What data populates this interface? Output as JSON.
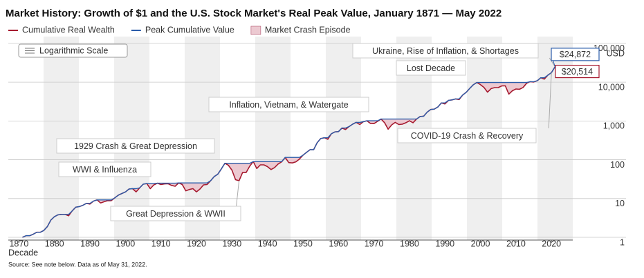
{
  "chart_data": {
    "type": "line",
    "title": "Market History: Growth of $1 and the U.S. Stock Market's Real Peak Value, January 1871 — May 2022",
    "x_label": "Decade",
    "y_unit": "USD",
    "scale_note": "Logarithmic Scale",
    "source": "Source: See note below. Data as of May 31, 2022.",
    "crash_label": "Market Crash Episode",
    "crash_color": "#ecc9d1",
    "log_scale": true,
    "grid": true,
    "xlim": [
      1867,
      2026
    ],
    "xticks": [
      1870,
      1880,
      1890,
      1900,
      1910,
      1920,
      1930,
      1940,
      1950,
      1960,
      1970,
      1980,
      1990,
      2000,
      2010,
      2020
    ],
    "ylim": [
      0.85,
      150000
    ],
    "yticks": [
      1,
      10,
      100,
      {
        "value": 1000,
        "label": "1,000"
      },
      {
        "value": 10000,
        "label": "10,000"
      },
      {
        "value": 100000,
        "label": "100,000"
      }
    ],
    "annotations": [
      "Ukraine, Rise of Inflation, & Shortages",
      "Lost Decade",
      "Inflation, Vietnam, & Watergate",
      "COVID-19 Crash & Recovery",
      "1929 Crash & Great Depression",
      "WWI & Influenza",
      "Great Depression & WWII"
    ],
    "x": [
      1871,
      1872,
      1873,
      1874,
      1875,
      1876,
      1877,
      1878,
      1879,
      1880,
      1881,
      1882,
      1883,
      1884,
      1885,
      1886,
      1887,
      1888,
      1889,
      1890,
      1891,
      1892,
      1893,
      1894,
      1895,
      1896,
      1897,
      1898,
      1899,
      1900,
      1901,
      1902,
      1903,
      1904,
      1905,
      1906,
      1907,
      1908,
      1909,
      1910,
      1911,
      1912,
      1913,
      1914,
      1915,
      1916,
      1917,
      1918,
      1919,
      1920,
      1921,
      1922,
      1923,
      1924,
      1925,
      1926,
      1927,
      1928,
      1929,
      1930,
      1931,
      1932,
      1933,
      1934,
      1935,
      1936,
      1937,
      1938,
      1939,
      1940,
      1941,
      1942,
      1943,
      1944,
      1945,
      1946,
      1947,
      1948,
      1949,
      1950,
      1951,
      1952,
      1953,
      1954,
      1955,
      1956,
      1957,
      1958,
      1959,
      1960,
      1961,
      1962,
      1963,
      1964,
      1965,
      1966,
      1967,
      1968,
      1969,
      1970,
      1971,
      1972,
      1973,
      1974,
      1975,
      1976,
      1977,
      1978,
      1979,
      1980,
      1981,
      1982,
      1983,
      1984,
      1985,
      1986,
      1987,
      1988,
      1989,
      1990,
      1991,
      1992,
      1993,
      1994,
      1995,
      1996,
      1997,
      1998,
      1999,
      2000,
      2001,
      2002,
      2003,
      2004,
      2005,
      2006,
      2007,
      2008,
      2009,
      2010,
      2011,
      2012,
      2013,
      2014,
      2015,
      2016,
      2017,
      2018,
      2019,
      2020,
      2021,
      2022
    ],
    "series": [
      {
        "name": "Cumulative Real Wealth",
        "color": "#a6192e",
        "values": [
          1.0,
          1.1,
          1.1,
          1.2,
          1.35,
          1.35,
          1.5,
          1.9,
          2.8,
          3.4,
          3.8,
          3.9,
          3.9,
          3.6,
          4.8,
          6.0,
          6.2,
          6.7,
          7.5,
          7.2,
          8.6,
          9.2,
          7.7,
          8.3,
          8.8,
          8.8,
          10.4,
          12.2,
          13.5,
          14.8,
          17.6,
          18.0,
          14.9,
          18.9,
          23.4,
          24.3,
          18.0,
          22.5,
          24.8,
          23.0,
          23.8,
          24.1,
          21.8,
          20.7,
          25.2,
          23.0,
          15.8,
          17.1,
          18.0,
          14.9,
          17.6,
          22.5,
          23.0,
          28.8,
          36.9,
          42.3,
          57.6,
          81,
          72,
          54,
          30.6,
          28.8,
          46.8,
          46.8,
          68.4,
          90,
          59.4,
          73.8,
          73.8,
          66.6,
          55.8,
          63,
          77.4,
          88.2,
          115,
          84.6,
          82.8,
          88.2,
          104,
          131,
          155,
          182,
          182,
          275,
          351,
          369,
          337,
          468,
          522,
          531,
          657,
          603,
          720,
          828,
          918,
          810,
          954,
          1010,
          864,
          855,
          972,
          1120,
          900,
          612,
          792,
          918,
          810,
          828,
          900,
          1010,
          900,
          1120,
          1300,
          1330,
          1690,
          1980,
          2020,
          2290,
          2920,
          2740,
          3400,
          3500,
          3700,
          3560,
          4680,
          5480,
          6960,
          8610,
          9800,
          8630,
          7290,
          5520,
          6830,
          7240,
          7230,
          8040,
          8050,
          4920,
          6020,
          6670,
          6560,
          7300,
          9390,
          10300,
          10100,
          10900,
          13000,
          12000,
          15200,
          17600,
          24872,
          20514
        ],
        "value_labels": [
          null,
          null,
          null,
          null,
          null,
          null,
          null,
          null,
          null,
          null,
          null,
          null,
          null,
          null,
          null,
          null,
          null,
          null,
          null,
          null,
          null,
          null,
          null,
          null,
          null,
          null,
          null,
          null,
          null,
          null,
          null,
          null,
          null,
          null,
          null,
          null,
          null,
          null,
          null,
          null,
          null,
          null,
          null,
          null,
          null,
          null,
          null,
          null,
          null,
          null,
          null,
          null,
          null,
          null,
          null,
          null,
          null,
          null,
          null,
          null,
          null,
          null,
          null,
          null,
          null,
          null,
          null,
          null,
          null,
          null,
          null,
          null,
          null,
          null,
          null,
          null,
          null,
          null,
          null,
          null,
          null,
          null,
          null,
          null,
          null,
          null,
          null,
          null,
          null,
          null,
          null,
          null,
          null,
          null,
          null,
          null,
          null,
          null,
          null,
          null,
          null,
          null,
          null,
          null,
          null,
          null,
          null,
          null,
          null,
          null,
          null,
          null,
          null,
          null,
          null,
          null,
          null,
          null,
          null,
          null,
          null,
          null,
          null,
          null,
          null,
          null,
          null,
          null,
          null,
          null,
          null,
          null,
          null,
          null,
          null,
          null,
          null,
          null,
          null,
          null,
          null,
          null,
          null,
          null,
          null,
          null,
          null,
          null,
          null,
          null,
          null,
          "$20,514"
        ]
      },
      {
        "name": "Peak Cumulative Value",
        "color": "#2a5caa",
        "values": [
          1.0,
          1.1,
          1.1,
          1.2,
          1.35,
          1.35,
          1.5,
          1.9,
          2.8,
          3.4,
          3.8,
          3.9,
          3.9,
          3.9,
          4.8,
          6.0,
          6.2,
          6.7,
          7.5,
          7.5,
          8.6,
          9.2,
          9.2,
          9.2,
          9.2,
          9.2,
          10.4,
          12.2,
          13.5,
          14.8,
          17.6,
          18.0,
          18.0,
          18.9,
          23.4,
          24.3,
          24.3,
          24.3,
          24.8,
          24.8,
          24.8,
          24.8,
          24.8,
          24.8,
          25.2,
          25.2,
          25.2,
          25.2,
          25.2,
          25.2,
          25.2,
          25.2,
          25.2,
          28.8,
          36.9,
          42.3,
          57.6,
          81,
          81,
          81,
          81,
          81,
          81,
          81,
          81,
          90,
          90,
          90,
          90,
          90,
          90,
          90,
          90,
          90,
          115,
          115,
          115,
          115,
          115,
          131,
          155,
          182,
          182,
          275,
          351,
          369,
          369,
          468,
          522,
          531,
          657,
          657,
          720,
          828,
          918,
          918,
          954,
          1010,
          1010,
          1010,
          1010,
          1120,
          1120,
          1120,
          1120,
          1120,
          1120,
          1120,
          1120,
          1120,
          1120,
          1120,
          1300,
          1330,
          1690,
          1980,
          2020,
          2290,
          2920,
          2920,
          3400,
          3500,
          3700,
          3700,
          4680,
          5480,
          6960,
          8610,
          9800,
          9800,
          9800,
          9800,
          9800,
          9800,
          9800,
          9800,
          9800,
          9800,
          9800,
          9800,
          9800,
          9800,
          9800,
          10300,
          10300,
          10900,
          13000,
          13000,
          15200,
          17600,
          24872,
          24872
        ],
        "value_labels": [
          null,
          null,
          null,
          null,
          null,
          null,
          null,
          null,
          null,
          null,
          null,
          null,
          null,
          null,
          null,
          null,
          null,
          null,
          null,
          null,
          null,
          null,
          null,
          null,
          null,
          null,
          null,
          null,
          null,
          null,
          null,
          null,
          null,
          null,
          null,
          null,
          null,
          null,
          null,
          null,
          null,
          null,
          null,
          null,
          null,
          null,
          null,
          null,
          null,
          null,
          null,
          null,
          null,
          null,
          null,
          null,
          null,
          null,
          null,
          null,
          null,
          null,
          null,
          null,
          null,
          null,
          null,
          null,
          null,
          null,
          null,
          null,
          null,
          null,
          null,
          null,
          null,
          null,
          null,
          null,
          null,
          null,
          null,
          null,
          null,
          null,
          null,
          null,
          null,
          null,
          null,
          null,
          null,
          null,
          null,
          null,
          null,
          null,
          null,
          null,
          null,
          null,
          null,
          null,
          null,
          null,
          null,
          null,
          null,
          null,
          null,
          null,
          null,
          null,
          null,
          null,
          null,
          null,
          null,
          null,
          null,
          null,
          null,
          null,
          null,
          null,
          null,
          null,
          null,
          null,
          null,
          null,
          null,
          null,
          null,
          null,
          null,
          null,
          null,
          null,
          null,
          null,
          null,
          null,
          null,
          null,
          null,
          null,
          null,
          null,
          "$24,872",
          null
        ]
      }
    ]
  }
}
